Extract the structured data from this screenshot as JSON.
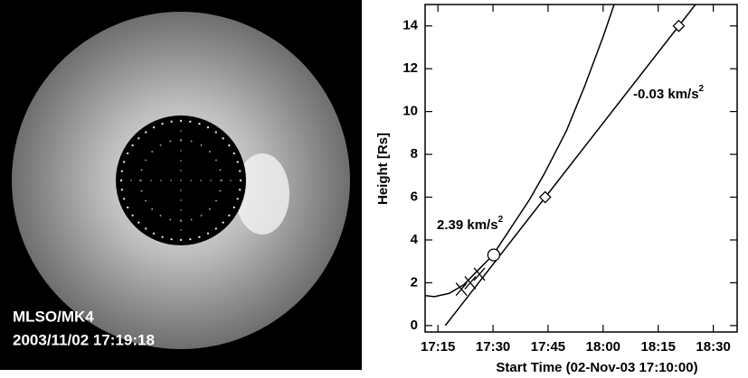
{
  "image": {
    "labels": [
      "MLSO/MK4",
      "2003/11/02 17:19:18"
    ]
  },
  "chart_data": {
    "type": "line",
    "xlabel": "Start Time (02-Nov-03 17:10:00)",
    "ylabel": "Height [Rs]",
    "xlim": [
      1.5,
      86.5
    ],
    "ylim": [
      -0.3,
      15
    ],
    "xticks": [
      {
        "value": 5,
        "label": "17:15"
      },
      {
        "value": 20,
        "label": "17:30"
      },
      {
        "value": 35,
        "label": "17:45"
      },
      {
        "value": 50,
        "label": "18:00"
      },
      {
        "value": 65,
        "label": "18:15"
      },
      {
        "value": 80,
        "label": "18:30"
      }
    ],
    "yticks": [
      0,
      2,
      4,
      6,
      8,
      10,
      12,
      14
    ],
    "series": [
      {
        "color": "#000",
        "x": [
          1.5,
          4,
          8,
          12,
          16,
          20,
          25,
          30,
          34,
          40,
          45,
          50,
          53
        ],
        "values": [
          1.4,
          1.35,
          1.5,
          1.9,
          2.6,
          3.3,
          4.6,
          5.9,
          7.1,
          9.1,
          11.2,
          13.5,
          15
        ]
      },
      {
        "color": "#000",
        "x": [
          7,
          86.5
        ],
        "values": [
          0,
          17.5
        ]
      }
    ],
    "markers": [
      {
        "marker": "x",
        "x": [
          11.4,
          13.8,
          16.3
        ],
        "values": [
          1.7,
          2.0,
          2.4
        ]
      },
      {
        "marker": "circle",
        "x": [
          20.2
        ],
        "values": [
          3.3
        ]
      },
      {
        "marker": "diamond",
        "x": [
          34.2,
          70.6
        ],
        "values": [
          6,
          14
        ]
      }
    ],
    "annotations": [
      {
        "text": "2.39 km/s",
        "superscript": "2"
      },
      {
        "text": "-0.03 km/s",
        "superscript": "2"
      }
    ]
  }
}
